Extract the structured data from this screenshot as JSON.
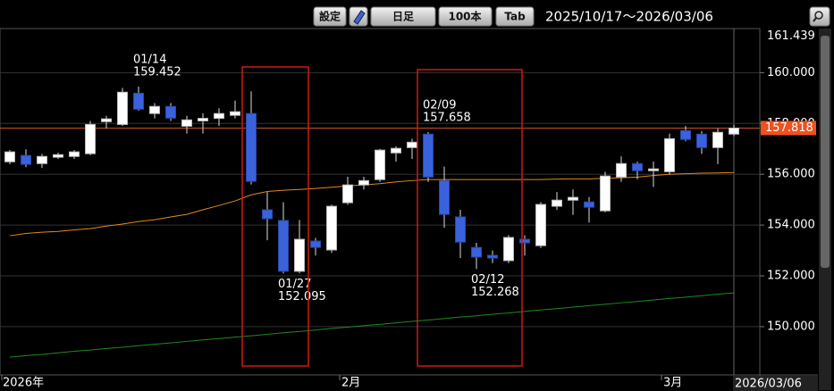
{
  "toolbar": {
    "buttons": [
      "設定",
      "日足",
      "100本",
      "Tab"
    ],
    "range": "2025/10/17～2026/03/06"
  },
  "chart_data": {
    "type": "candlestick",
    "categories": [
      "2026年",
      null,
      null,
      null,
      null,
      null,
      null,
      null,
      null,
      null,
      null,
      null,
      null,
      null,
      null,
      null,
      null,
      null,
      null,
      null,
      null,
      "2月",
      null,
      null,
      null,
      null,
      null,
      null,
      null,
      null,
      null,
      null,
      null,
      null,
      null,
      null,
      null,
      null,
      null,
      null,
      null,
      "3月",
      null,
      null,
      null,
      null
    ],
    "last_date": "2026/03/06",
    "open": [
      156.49,
      156.74,
      156.42,
      156.67,
      156.7,
      156.81,
      158.07,
      157.96,
      159.19,
      158.39,
      158.67,
      157.89,
      158.1,
      158.2,
      158.32,
      158.39,
      154.6,
      154.18,
      152.18,
      153.37,
      153.02,
      154.88,
      155.58,
      155.79,
      156.84,
      157.05,
      157.58,
      155.75,
      154.32,
      153.12,
      152.81,
      152.6,
      153.44,
      153.19,
      154.74,
      154.98,
      154.91,
      154.56,
      155.89,
      156.42,
      156.14,
      156.1,
      157.72,
      157.58,
      157.05,
      157.58
    ],
    "high": [
      156.95,
      156.98,
      156.8,
      156.85,
      156.95,
      158.1,
      158.3,
      159.4,
      159.452,
      158.8,
      158.8,
      158.3,
      158.4,
      158.6,
      158.9,
      159.26,
      155.3,
      154.9,
      154.2,
      153.5,
      154.8,
      155.9,
      155.9,
      157.0,
      157.1,
      157.4,
      157.658,
      156.3,
      154.6,
      153.3,
      153.0,
      153.6,
      153.6,
      154.9,
      155.3,
      155.4,
      155.1,
      156.1,
      156.7,
      156.5,
      156.5,
      157.6,
      157.9,
      157.7,
      157.8,
      157.95
    ],
    "low": [
      156.4,
      156.28,
      156.25,
      156.6,
      156.6,
      156.75,
      157.8,
      157.9,
      158.5,
      158.2,
      158.1,
      157.6,
      157.6,
      157.9,
      158.2,
      155.6,
      153.4,
      152.095,
      152.1,
      152.8,
      152.9,
      154.8,
      155.4,
      155.7,
      156.5,
      156.6,
      155.7,
      153.9,
      152.7,
      152.268,
      152.5,
      152.5,
      152.8,
      153.1,
      154.6,
      154.4,
      154.1,
      154.5,
      155.7,
      155.8,
      155.5,
      156.0,
      157.3,
      156.8,
      156.4,
      157.5
    ],
    "close": [
      156.88,
      156.39,
      156.7,
      156.77,
      156.88,
      157.96,
      158.18,
      159.23,
      158.56,
      158.67,
      158.21,
      158.14,
      158.2,
      158.39,
      158.46,
      155.72,
      154.25,
      152.18,
      153.44,
      153.12,
      154.74,
      155.58,
      155.75,
      156.95,
      157.02,
      157.26,
      155.89,
      154.42,
      153.33,
      152.74,
      152.7,
      153.51,
      153.3,
      154.81,
      154.98,
      155.09,
      154.7,
      155.93,
      156.42,
      156.14,
      156.21,
      157.4,
      157.37,
      157.05,
      157.65,
      157.818
    ],
    "up_color": "#ffffff",
    "down_color": "#3a62dc",
    "lines": [
      {
        "color": "#e08a1e",
        "values": [
          153.58,
          153.67,
          153.72,
          153.75,
          153.81,
          153.86,
          153.96,
          154.04,
          154.14,
          154.21,
          154.32,
          154.42,
          154.6,
          154.77,
          154.95,
          155.19,
          155.32,
          155.37,
          155.4,
          155.44,
          155.49,
          155.54,
          155.58,
          155.63,
          155.7,
          155.75,
          155.79,
          155.79,
          155.79,
          155.79,
          155.79,
          155.79,
          155.79,
          155.79,
          155.81,
          155.82,
          155.82,
          155.84,
          155.86,
          155.89,
          155.95,
          156.0,
          156.02,
          156.04,
          156.05,
          156.07
        ]
      },
      {
        "color": "#1f8a1f",
        "values": [
          148.8,
          148.86,
          148.91,
          148.97,
          149.03,
          149.08,
          149.14,
          149.19,
          149.25,
          149.31,
          149.36,
          149.42,
          149.48,
          149.53,
          149.59,
          149.64,
          149.7,
          149.76,
          149.81,
          149.87,
          149.93,
          149.98,
          150.04,
          150.09,
          150.15,
          150.21,
          150.26,
          150.32,
          150.38,
          150.43,
          150.49,
          150.54,
          150.6,
          150.66,
          150.71,
          150.77,
          150.83,
          150.88,
          150.94,
          150.99,
          151.05,
          151.11,
          151.16,
          151.22,
          151.28,
          151.33
        ]
      }
    ],
    "ylim": [
      148.1,
      161.7
    ],
    "yticks": [
      {
        "value": 150,
        "label": "150.000"
      },
      {
        "value": 152,
        "label": "152.000"
      },
      {
        "value": 154,
        "label": "154.000"
      },
      {
        "value": 156,
        "label": "156.000"
      },
      {
        "value": 158,
        "label": "158.000"
      },
      {
        "value": 160,
        "label": "160.000"
      }
    ],
    "grid": true,
    "period_high": 161.439,
    "last_price": 157.818,
    "annotations": [
      {
        "index": 8,
        "date": "01/14",
        "value": 159.452,
        "side": "above"
      },
      {
        "index": 17,
        "date": "01/27",
        "value": 152.095,
        "side": "below"
      },
      {
        "index": 26,
        "date": "02/09",
        "value": 157.658,
        "side": "above"
      },
      {
        "index": 29,
        "date": "02/12",
        "value": 152.268,
        "side": "below"
      }
    ]
  }
}
